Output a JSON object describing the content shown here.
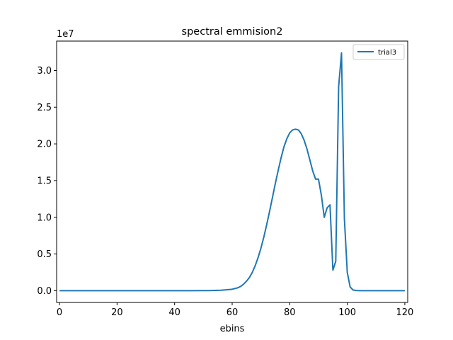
{
  "chart_data": {
    "type": "line",
    "title": "spectral emmision2",
    "xlabel": "ebins",
    "ylabel": "",
    "y_offset_label": "1e7",
    "xlim": [
      -1,
      121
    ],
    "ylim": [
      -0.16,
      3.4
    ],
    "x_ticks": [
      0,
      20,
      40,
      60,
      80,
      100,
      120
    ],
    "y_ticks": [
      0.0,
      0.5,
      1.0,
      1.5,
      2.0,
      2.5,
      3.0
    ],
    "x_tick_labels": [
      "0",
      "20",
      "40",
      "60",
      "80",
      "100",
      "120"
    ],
    "y_tick_labels": [
      "0.0",
      "0.5",
      "1.0",
      "1.5",
      "2.0",
      "2.5",
      "3.0"
    ],
    "grid": false,
    "legend_position": "top-right",
    "series": [
      {
        "name": "trial3",
        "color": "#1f77b4",
        "x": [
          0,
          5,
          10,
          15,
          20,
          25,
          30,
          35,
          40,
          45,
          50,
          52,
          54,
          56,
          58,
          60,
          62,
          63,
          64,
          65,
          66,
          67,
          68,
          69,
          70,
          71,
          72,
          73,
          74,
          75,
          76,
          77,
          78,
          79,
          80,
          81,
          82,
          83,
          84,
          85,
          86,
          87,
          88,
          89,
          90,
          91,
          92,
          93,
          94,
          95,
          96,
          97,
          98,
          99,
          100,
          101,
          102,
          103,
          105,
          110,
          115,
          120
        ],
        "values": [
          0,
          0,
          0,
          0,
          0,
          0,
          0,
          0,
          0,
          0,
          0.001,
          0.002,
          0.004,
          0.007,
          0.012,
          0.02,
          0.04,
          0.06,
          0.09,
          0.13,
          0.18,
          0.25,
          0.34,
          0.45,
          0.58,
          0.73,
          0.9,
          1.08,
          1.27,
          1.46,
          1.64,
          1.81,
          1.96,
          2.07,
          2.15,
          2.19,
          2.2,
          2.19,
          2.14,
          2.05,
          1.93,
          1.78,
          1.63,
          1.52,
          1.52,
          1.3,
          1.0,
          1.13,
          1.17,
          0.28,
          0.4,
          2.78,
          3.24,
          0.98,
          0.25,
          0.05,
          0.01,
          0.003,
          0,
          0,
          0,
          0
        ]
      }
    ]
  }
}
